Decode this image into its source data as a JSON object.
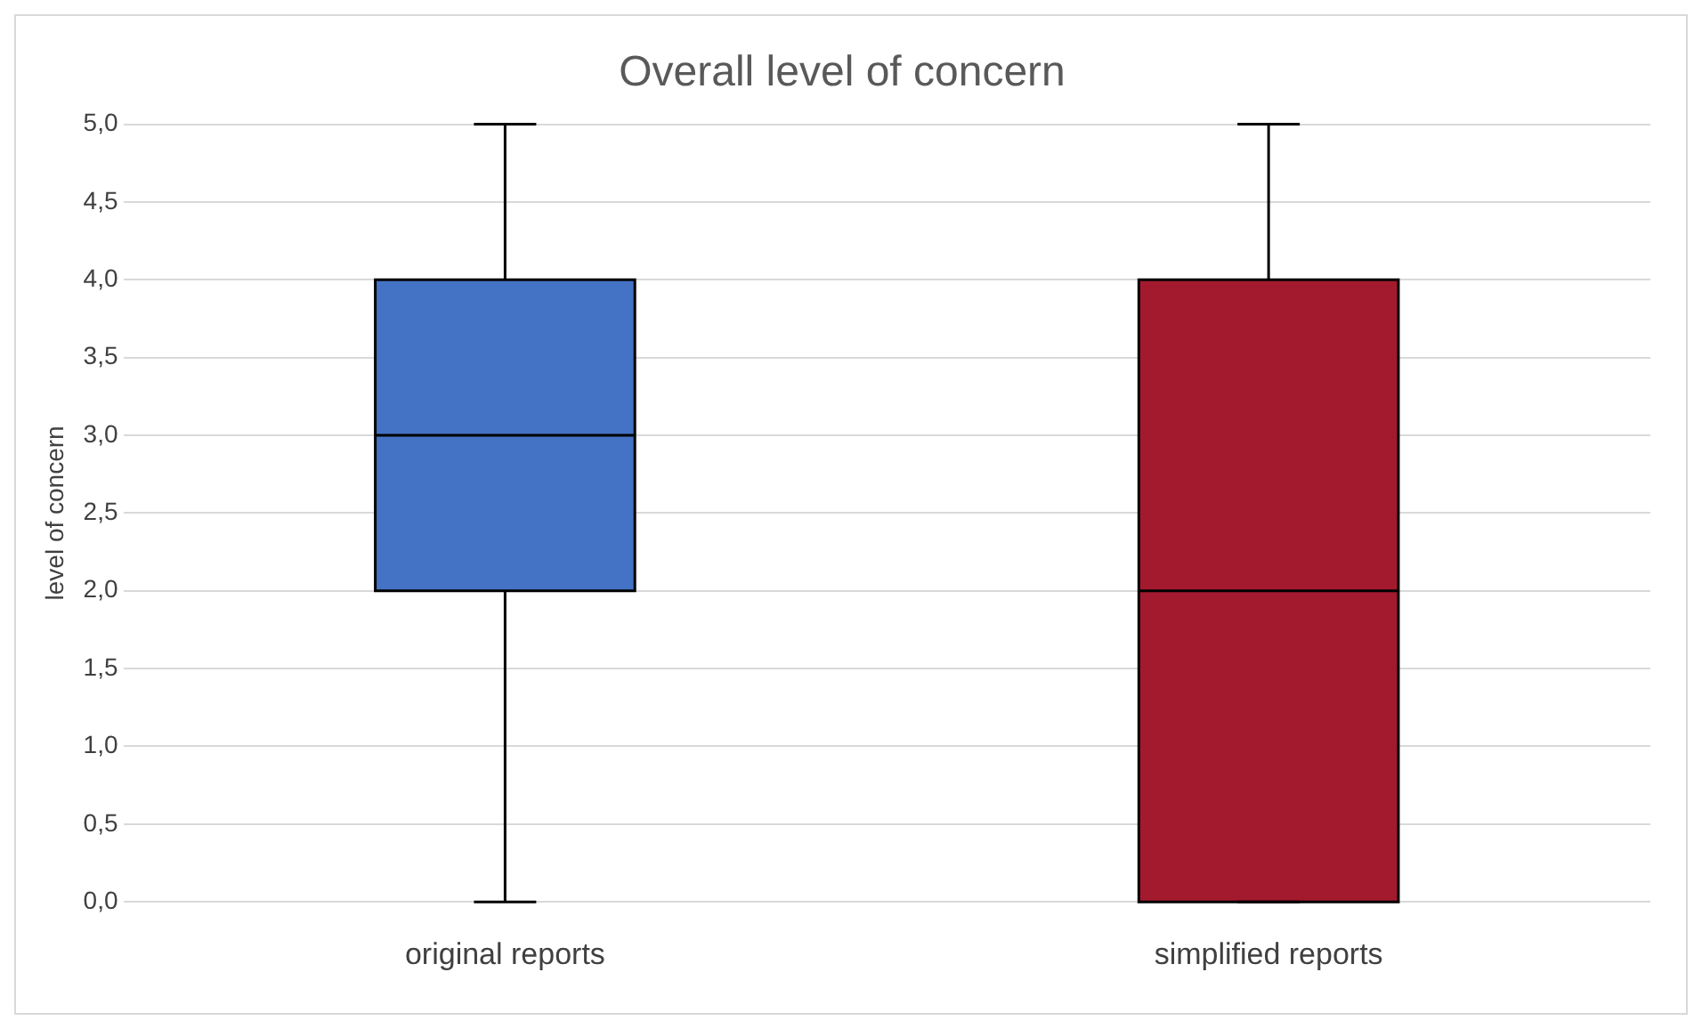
{
  "chart_data": {
    "type": "box",
    "title": "Overall level of concern",
    "ylabel": "level of concern",
    "categories": [
      "original reports",
      "simplified reports"
    ],
    "boxes": [
      {
        "low": 0,
        "q1": 2,
        "median": 3,
        "q3": 4,
        "high": 5
      },
      {
        "low": 0,
        "q1": 0,
        "median": 2,
        "q3": 4,
        "high": 5
      }
    ],
    "colors": [
      "#4472c4",
      "#a31a2e"
    ],
    "ylim": [
      0,
      5
    ],
    "yticks": [
      {
        "value": 0,
        "label": "0,0"
      },
      {
        "value": 0.5,
        "label": "0,5"
      },
      {
        "value": 1,
        "label": "1,0"
      },
      {
        "value": 1.5,
        "label": "1,5"
      },
      {
        "value": 2,
        "label": "2,0"
      },
      {
        "value": 2.5,
        "label": "2,5"
      },
      {
        "value": 3,
        "label": "3,0"
      },
      {
        "value": 3.5,
        "label": "3,5"
      },
      {
        "value": 4,
        "label": "4,0"
      },
      {
        "value": 4.5,
        "label": "4,5"
      },
      {
        "value": 5,
        "label": "5,0"
      }
    ],
    "grid": "y"
  }
}
